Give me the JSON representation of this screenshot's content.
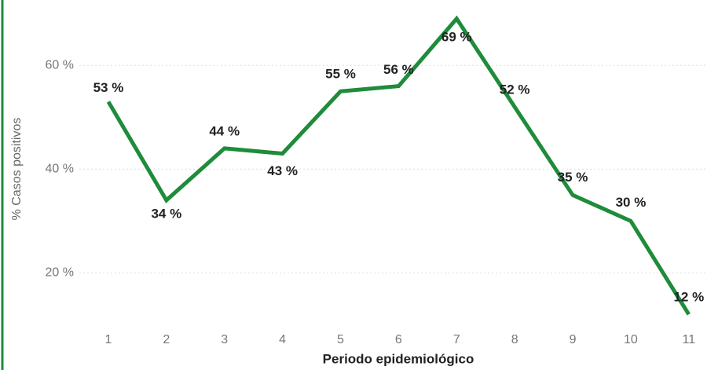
{
  "chart_data": {
    "type": "line",
    "x_label": "Periodo epidemiológico",
    "y_label": "% Casos positivos",
    "x": [
      1,
      2,
      3,
      4,
      5,
      6,
      7,
      8,
      9,
      10,
      11
    ],
    "series": [
      {
        "name": "% Casos positivos",
        "color": "#1e8c3a",
        "values": [
          53,
          34,
          44,
          43,
          55,
          56,
          69,
          52,
          35,
          30,
          12
        ],
        "value_labels": [
          "53 %",
          "34 %",
          "44 %",
          "43 %",
          "55 %",
          "56 %",
          "69 %",
          "52 %",
          "35 %",
          "30 %",
          "12 %"
        ]
      }
    ],
    "xlim": [
      0.5,
      11.3
    ],
    "xticks": [
      1,
      2,
      3,
      4,
      5,
      6,
      7,
      8,
      9,
      10,
      11
    ],
    "ylim": [
      9,
      72
    ],
    "yticks": [
      {
        "value": 20,
        "label": "20 %"
      },
      {
        "value": 40,
        "label": "40 %"
      },
      {
        "value": 60,
        "label": "60 %"
      }
    ],
    "grid": true
  }
}
